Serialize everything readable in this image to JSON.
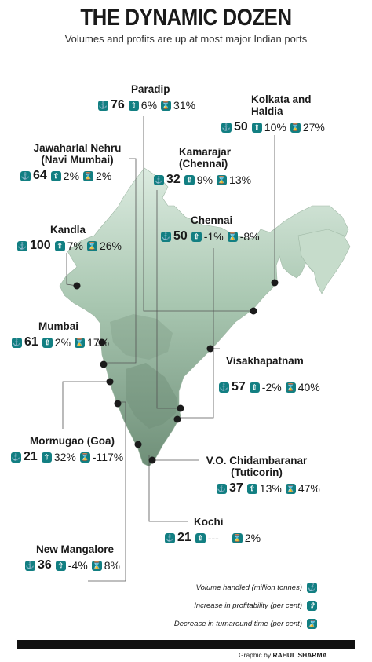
{
  "header": {
    "title": "THE DYNAMIC DOZEN",
    "subtitle": "Volumes and profits are up at most major Indian ports"
  },
  "ports": [
    {
      "name": "Paradip",
      "volume": "76",
      "profit": "6%",
      "turnaround": "31%"
    },
    {
      "name": "Kolkata and Haldia",
      "volume": "50",
      "profit": "10%",
      "turnaround": "27%"
    },
    {
      "name": "Jawaharlal Nehru (Navi Mumbai)",
      "volume": "64",
      "profit": "2%",
      "turnaround": "2%"
    },
    {
      "name": "Kamarajar (Chennai)",
      "volume": "32",
      "profit": "9%",
      "turnaround": "13%"
    },
    {
      "name": "Kandla",
      "volume": "100",
      "profit": "7%",
      "turnaround": "26%"
    },
    {
      "name": "Chennai",
      "volume": "50",
      "profit": "-1%",
      "turnaround": "-8%"
    },
    {
      "name": "Mumbai",
      "volume": "61",
      "profit": "2%",
      "turnaround": "17%"
    },
    {
      "name": "Visakhapatnam",
      "volume": "57",
      "profit": "-2%",
      "turnaround": "40%"
    },
    {
      "name": "Mormugao (Goa)",
      "volume": "21",
      "profit": "32%",
      "turnaround": "-117%"
    },
    {
      "name": "V.O. Chidambaranar (Tuticorin)",
      "volume": "37",
      "profit": "13%",
      "turnaround": "47%"
    },
    {
      "name": "Kochi",
      "volume": "21",
      "profit": "---",
      "turnaround": "2%"
    },
    {
      "name": "New Mangalore",
      "volume": "36",
      "profit": "-4%",
      "turnaround": "8%"
    }
  ],
  "legend": {
    "volume": "Volume handled (million tonnes)",
    "profit": "Increase in profitability (per cent)",
    "turnaround": "Decrease in turnaround time (per cent)"
  },
  "icons": {
    "volume": "anchor-icon",
    "profit": "arrow-up-icon",
    "turnaround": "hourglass-icon"
  },
  "colors": {
    "accent": "#127f82",
    "map_light": "#d8e9dc",
    "map_dark": "#7fa48c"
  },
  "credit": {
    "prefix": "Graphic by",
    "author": "RAHUL SHARMA"
  }
}
